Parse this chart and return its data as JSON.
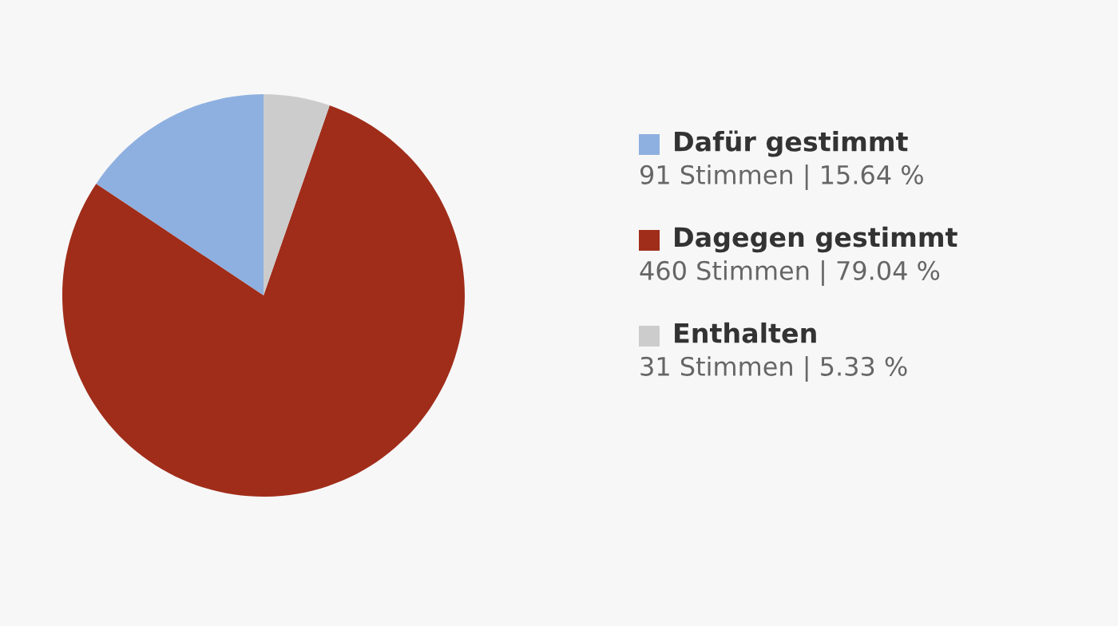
{
  "chart_data": {
    "type": "pie",
    "categories": [
      "Dafür gestimmt",
      "Dagegen gestimmt",
      "Enthalten"
    ],
    "values": [
      91,
      460,
      31
    ],
    "colors": [
      "#8eb0e0",
      "#a02d1a",
      "#cccccc"
    ],
    "value_labels": [
      "91 Stimmen | 15.64 %",
      "460 Stimmen | 79.04 %",
      "31 Stimmen | 5.33 %"
    ],
    "legend": "right"
  }
}
